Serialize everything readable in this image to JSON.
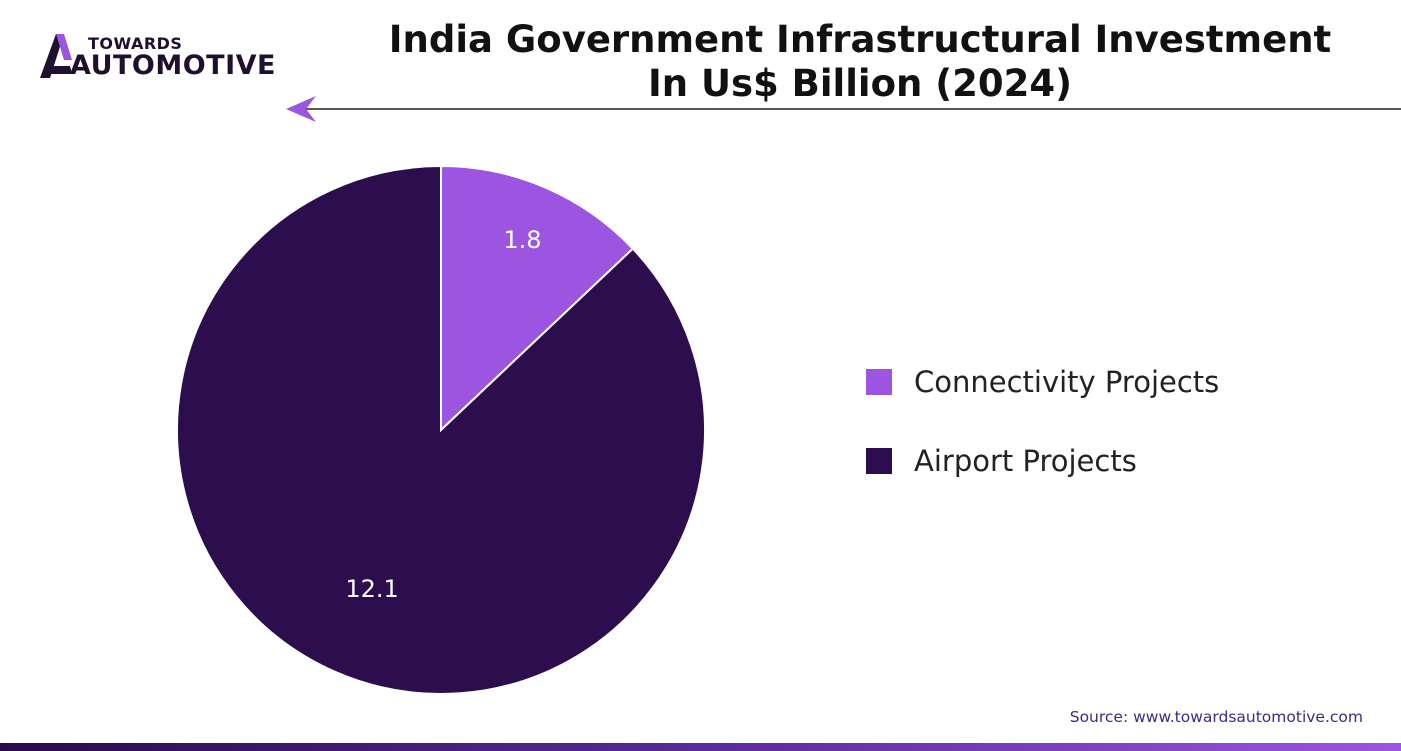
{
  "brand": {
    "name_top": "TOWARDS",
    "name_bottom": "AUTOMOTIVE",
    "accent_color": "#9b55e0",
    "dark_color": "#2c0d4d"
  },
  "header": {
    "title_line1": "India Government Infrastructural Investment",
    "title_line2": "In Us$ Billion (2024)"
  },
  "chart_data": {
    "type": "pie",
    "title": "India Government Infrastructural Investment In Us$ Billion (2024)",
    "unit": "US$ Billion",
    "legend_position": "right",
    "series": [
      {
        "name": "Connectivity Projects",
        "value": 1.8,
        "label": "1.8",
        "color": "#9b55e0"
      },
      {
        "name": "Airport Projects",
        "value": 12.1,
        "label": "12.1",
        "color": "#2c0d4d"
      }
    ]
  },
  "legend": {
    "items": [
      {
        "label": "Connectivity Projects",
        "color": "#9b55e0"
      },
      {
        "label": "Airport Projects",
        "color": "#2c0d4d"
      }
    ]
  },
  "footer": {
    "source": "Source: www.towardsautomotive.com"
  }
}
